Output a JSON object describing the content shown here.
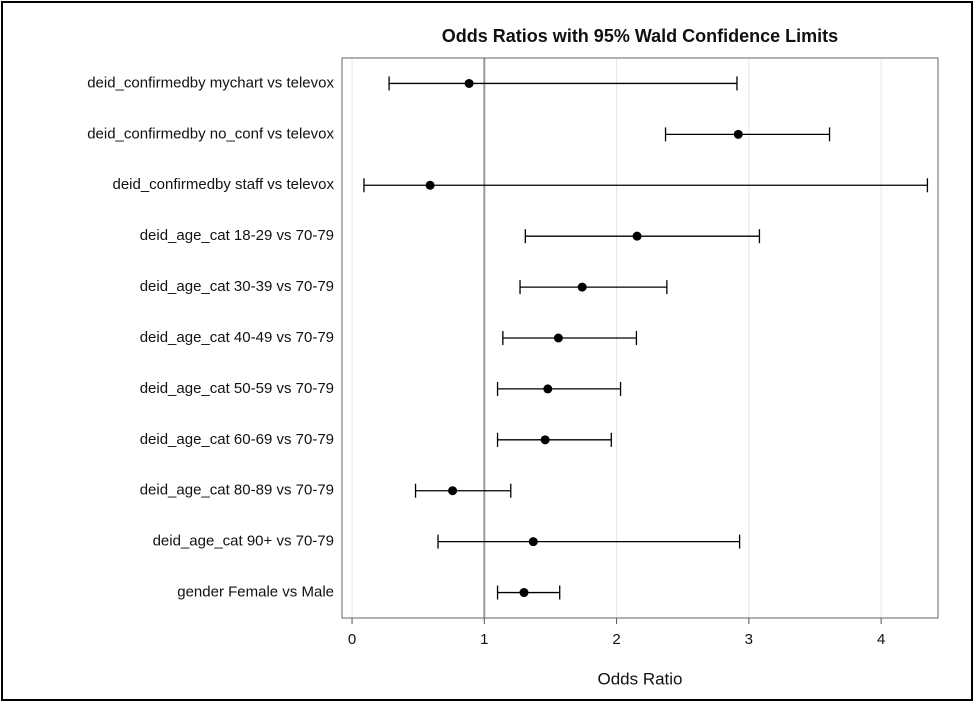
{
  "chart_data": {
    "type": "forest",
    "title": "Odds Ratios with 95%  Wald Confidence Limits",
    "xlabel": "Odds Ratio",
    "categories": [
      "deid_confirmedby mychart vs televox",
      "deid_confirmedby no_conf vs televox",
      "deid_confirmedby staff vs televox",
      "deid_age_cat 18-29 vs 70-79",
      "deid_age_cat 30-39 vs 70-79",
      "deid_age_cat 40-49 vs 70-79",
      "deid_age_cat 50-59 vs 70-79",
      "deid_age_cat 60-69 vs 70-79",
      "deid_age_cat 80-89 vs 70-79",
      "deid_age_cat 90+ vs 70-79",
      "gender Female vs Male"
    ],
    "values": [
      0.885,
      2.92,
      0.59,
      2.155,
      1.74,
      1.56,
      1.48,
      1.46,
      0.76,
      1.37,
      1.3
    ],
    "lower": [
      0.28,
      2.37,
      0.09,
      1.31,
      1.27,
      1.14,
      1.1,
      1.1,
      0.48,
      0.65,
      1.1
    ],
    "upper": [
      2.91,
      3.61,
      4.35,
      3.08,
      2.38,
      2.15,
      2.03,
      1.96,
      1.2,
      2.93,
      1.57
    ],
    "reference_line": 1,
    "xlim": [
      -0.076,
      4.43
    ],
    "xticks": [
      0,
      1,
      2,
      3,
      4
    ],
    "grid": true,
    "color": "#000000"
  }
}
